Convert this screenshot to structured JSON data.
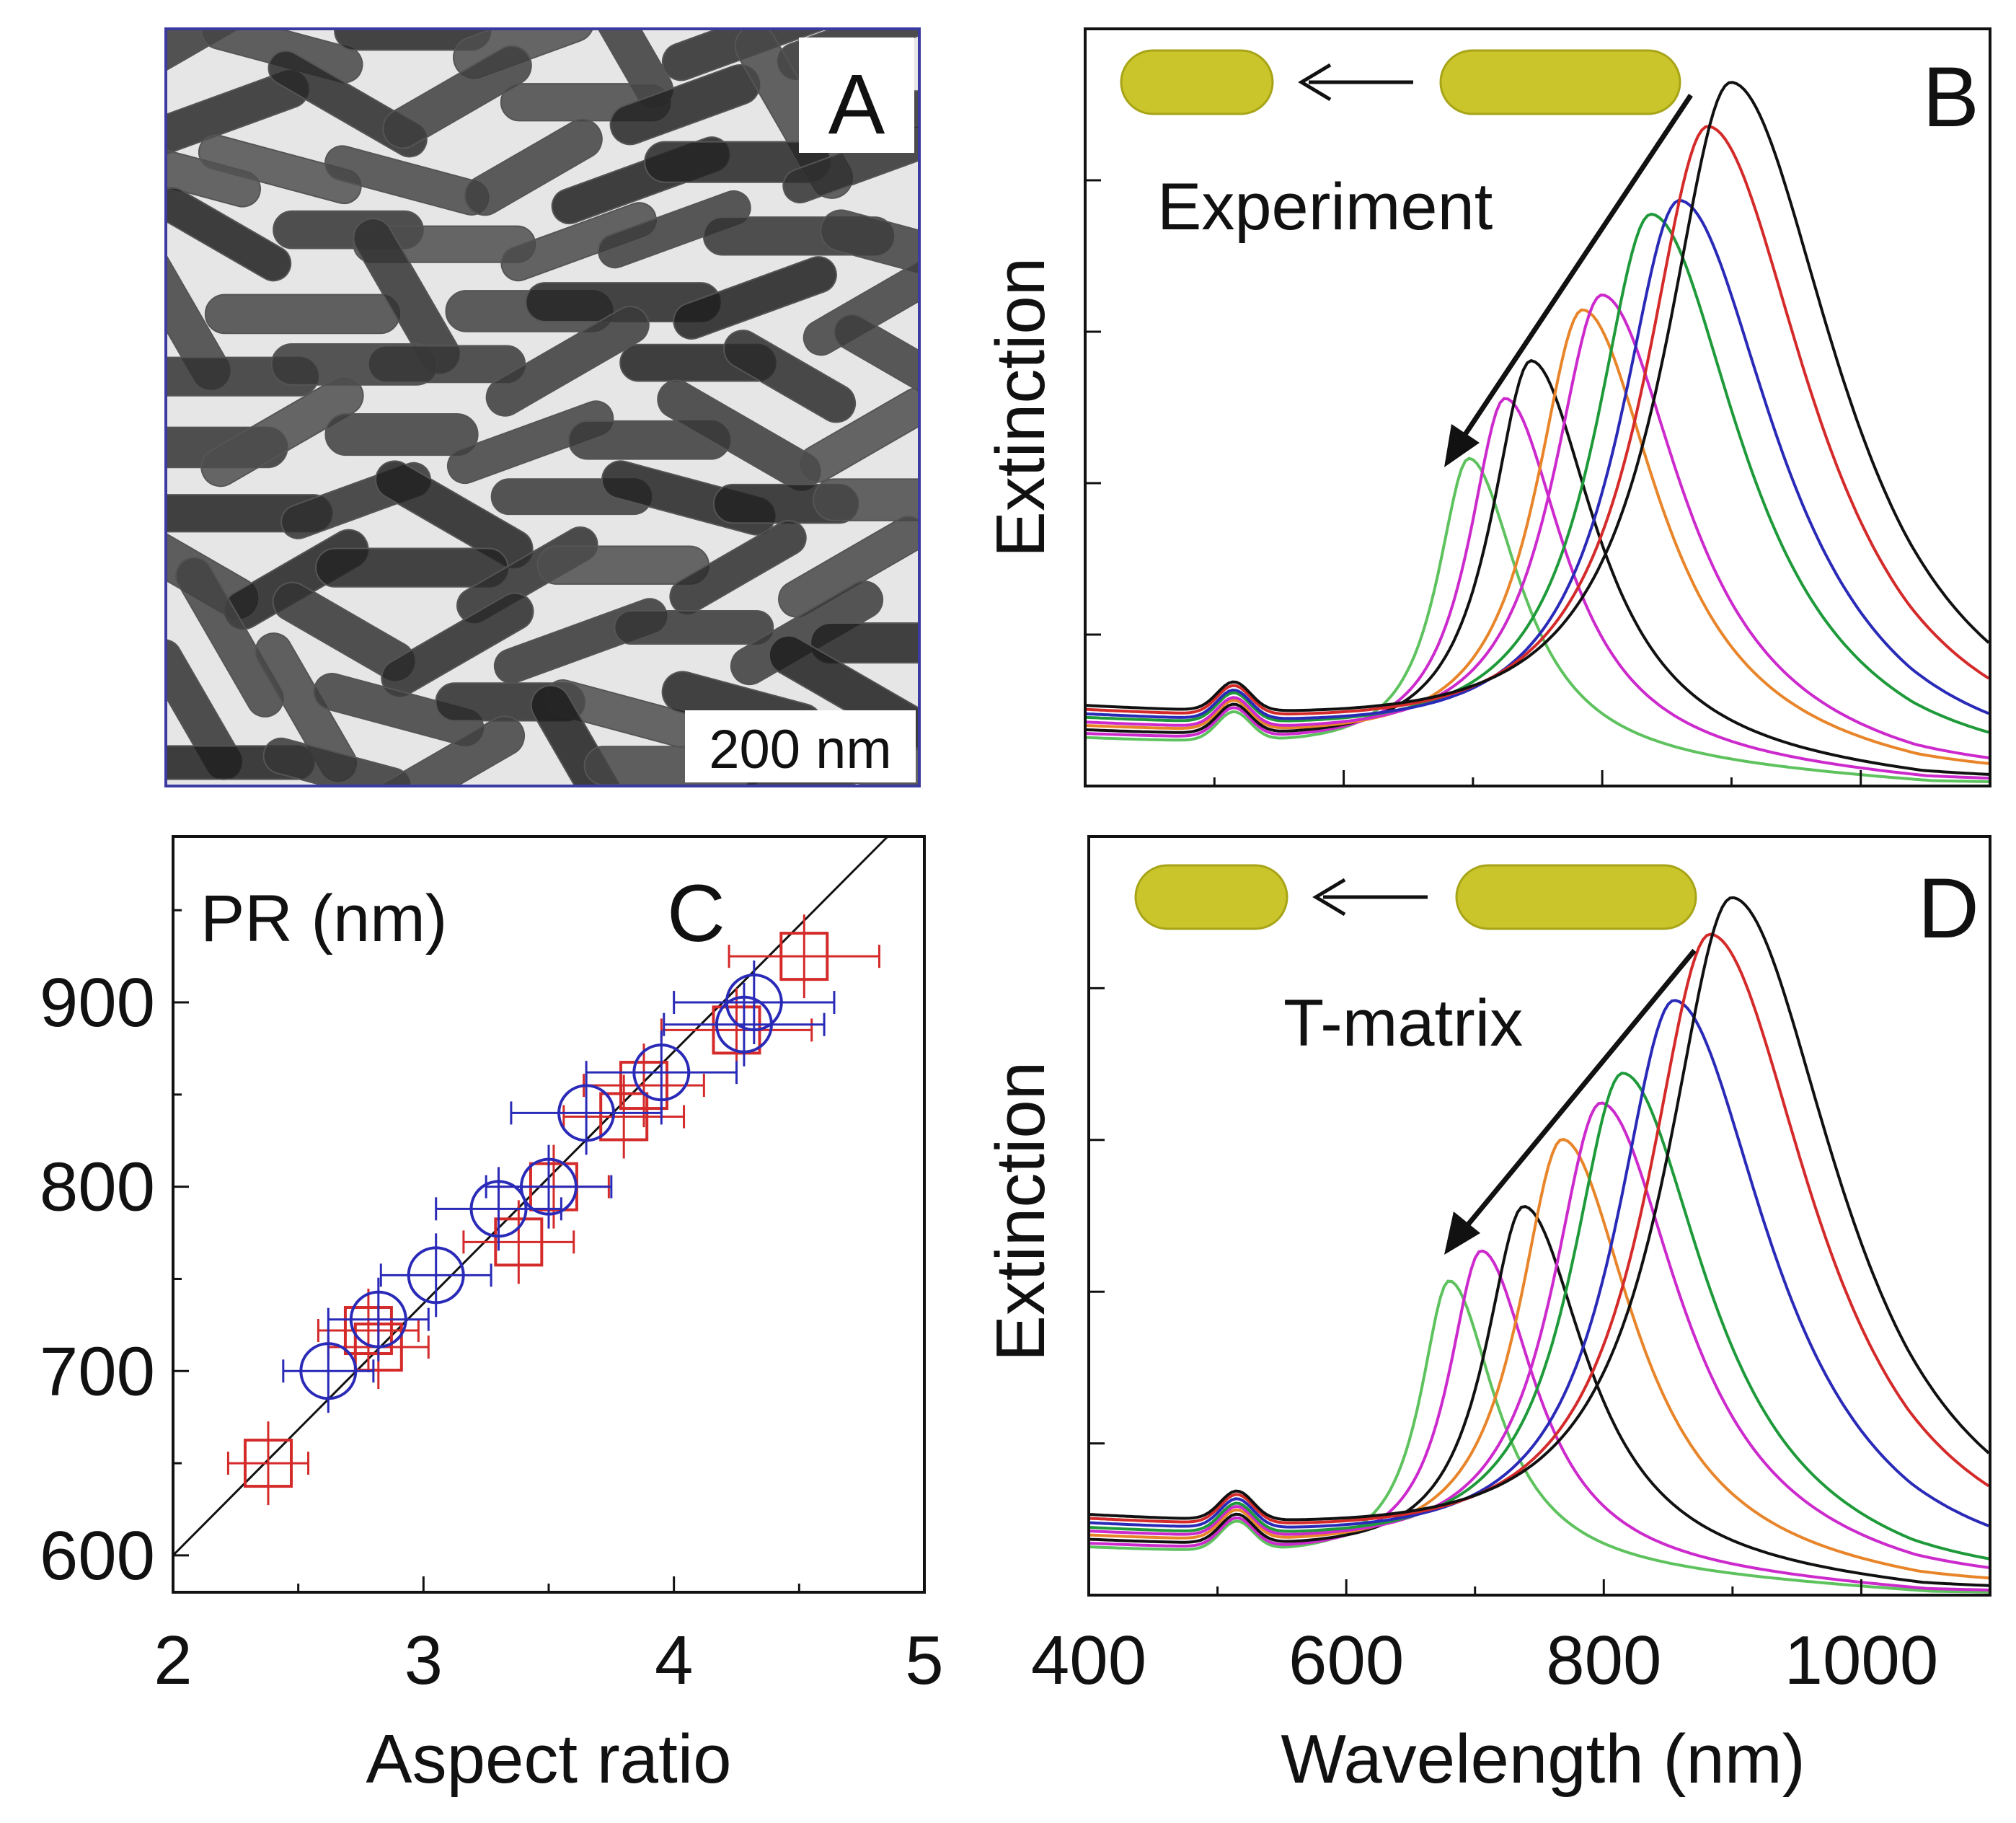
{
  "panels": {
    "A": {
      "letter": "A",
      "scalebar_label": "200 nm"
    },
    "B": {
      "letter": "B",
      "label": "Experiment",
      "ylabel": "Extinction"
    },
    "C": {
      "letter": "C",
      "inner_label": "PR (nm)",
      "xlabel": "Aspect ratio"
    },
    "D": {
      "letter": "D",
      "label": "T-matrix",
      "ylabel": "Extinction",
      "xlabel": "Wavelength (nm)"
    }
  },
  "colors": {
    "rod_fill": "#c9c52a",
    "rod_stroke": "#a8a418",
    "red": "#d42a2a",
    "blue": "#2a2ab8",
    "green": "#1f9a3a",
    "light_green": "#5ec25e",
    "magenta": "#cc2acc",
    "orange": "#e8852a",
    "black": "#111111",
    "tem_background": "#e6e6e6",
    "tem_frame": "#3a3aa0"
  },
  "chart_data": [
    {
      "panel": "C",
      "type": "scatter",
      "xlabel": "Aspect ratio",
      "ylabel": "PR (nm)",
      "xlim": [
        2,
        5
      ],
      "ylim": [
        580,
        990
      ],
      "x_ticks": [
        2,
        3,
        4,
        5
      ],
      "y_ticks": [
        600,
        700,
        800,
        900
      ],
      "reference_line": [
        [
          2.0,
          600
        ],
        [
          5.0,
          1010
        ]
      ],
      "series": [
        {
          "marker": "square",
          "color": "red",
          "points": [
            {
              "x": 2.38,
              "y": 650,
              "xerr": 0.16
            },
            {
              "x": 2.82,
              "y": 713,
              "xerr": 0.2
            },
            {
              "x": 2.78,
              "y": 722,
              "xerr": 0.2
            },
            {
              "x": 3.38,
              "y": 770,
              "xerr": 0.22
            },
            {
              "x": 3.52,
              "y": 800,
              "xerr": 0.22
            },
            {
              "x": 3.8,
              "y": 838,
              "xerr": 0.24
            },
            {
              "x": 3.88,
              "y": 855,
              "xerr": 0.24
            },
            {
              "x": 4.25,
              "y": 885,
              "xerr": 0.3
            },
            {
              "x": 4.52,
              "y": 925,
              "xerr": 0.3
            }
          ]
        },
        {
          "marker": "circle",
          "color": "blue",
          "points": [
            {
              "x": 2.62,
              "y": 700,
              "xerr": 0.18
            },
            {
              "x": 2.82,
              "y": 728,
              "xerr": 0.2
            },
            {
              "x": 3.05,
              "y": 752,
              "xerr": 0.22
            },
            {
              "x": 3.3,
              "y": 788,
              "xerr": 0.25
            },
            {
              "x": 3.5,
              "y": 800,
              "xerr": 0.25
            },
            {
              "x": 3.65,
              "y": 840,
              "xerr": 0.3
            },
            {
              "x": 3.95,
              "y": 862,
              "xerr": 0.3
            },
            {
              "x": 4.28,
              "y": 888,
              "xerr": 0.32
            },
            {
              "x": 4.32,
              "y": 900,
              "xerr": 0.32
            }
          ]
        }
      ]
    },
    {
      "panel": "B",
      "type": "line",
      "xlabel": "",
      "ylabel": "Extinction",
      "xlim": [
        400,
        1100
      ],
      "ylim": [
        0,
        1.0
      ],
      "x_ticks": [
        400,
        600,
        800,
        1000
      ],
      "series": [
        {
          "color": "light_green",
          "peak_nm": 697,
          "peak": 0.4
        },
        {
          "color": "magenta",
          "peak_nm": 725,
          "peak": 0.48
        },
        {
          "color": "black",
          "peak_nm": 745,
          "peak": 0.53
        },
        {
          "color": "orange",
          "peak_nm": 785,
          "peak": 0.6
        },
        {
          "color": "magenta",
          "peak_nm": 800,
          "peak": 0.62
        },
        {
          "color": "green",
          "peak_nm": 838,
          "peak": 0.73
        },
        {
          "color": "blue",
          "peak_nm": 860,
          "peak": 0.75
        },
        {
          "color": "red",
          "peak_nm": 882,
          "peak": 0.85
        },
        {
          "color": "black",
          "peak_nm": 900,
          "peak": 0.91
        }
      ]
    },
    {
      "panel": "D",
      "type": "line",
      "xlabel": "Wavelength (nm)",
      "ylabel": "Extinction",
      "xlim": [
        400,
        1100
      ],
      "ylim": [
        0,
        1.0
      ],
      "x_ticks": [
        400,
        600,
        800,
        1000
      ],
      "x_tick_labels": [
        "400",
        "600",
        "800",
        "1000"
      ],
      "series": [
        {
          "color": "light_green",
          "peak_nm": 680,
          "peak": 0.38
        },
        {
          "color": "magenta",
          "peak_nm": 705,
          "peak": 0.42
        },
        {
          "color": "black",
          "peak_nm": 738,
          "peak": 0.48
        },
        {
          "color": "orange",
          "peak_nm": 768,
          "peak": 0.57
        },
        {
          "color": "magenta",
          "peak_nm": 798,
          "peak": 0.62
        },
        {
          "color": "green",
          "peak_nm": 815,
          "peak": 0.66
        },
        {
          "color": "blue",
          "peak_nm": 855,
          "peak": 0.76
        },
        {
          "color": "red",
          "peak_nm": 883,
          "peak": 0.85
        },
        {
          "color": "black",
          "peak_nm": 900,
          "peak": 0.9
        }
      ]
    }
  ]
}
